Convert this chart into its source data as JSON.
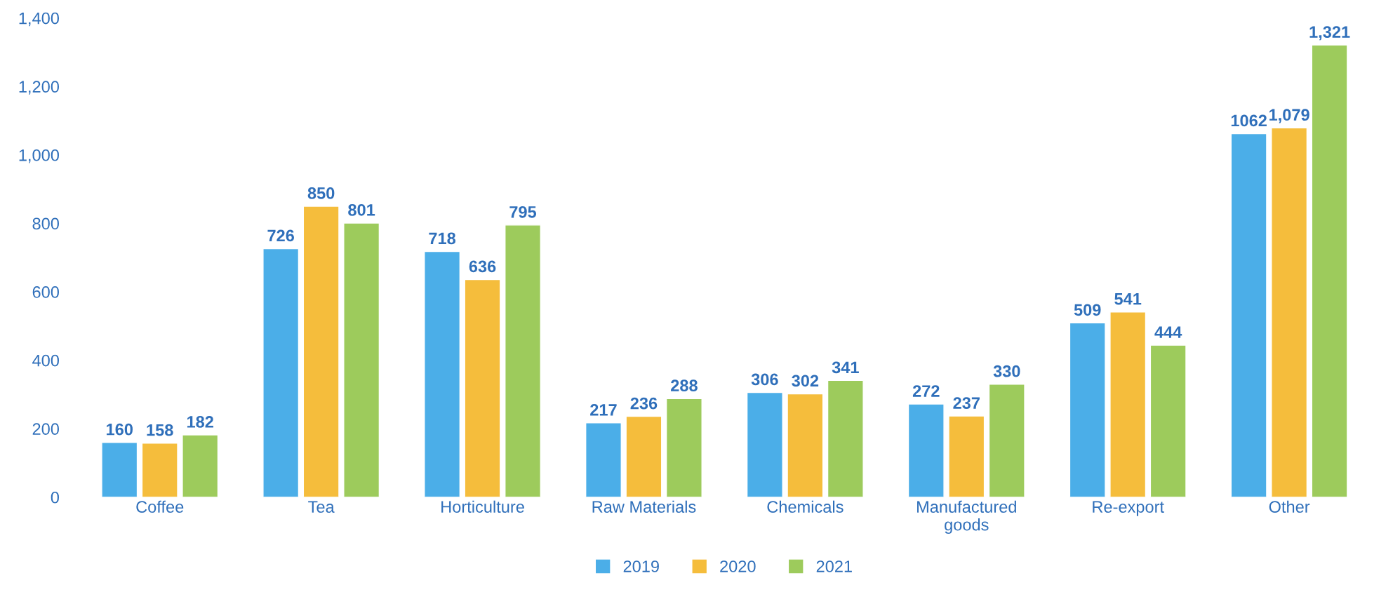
{
  "chart_data": {
    "type": "bar",
    "categories": [
      "Coffee",
      "Tea",
      "Horticulture",
      "Raw Materials",
      "Chemicals",
      "Manufactured\ngoods",
      "Re-export",
      "Other"
    ],
    "series": [
      {
        "name": "2019",
        "color": "#4baee8",
        "values": [
          160,
          726,
          718,
          217,
          306,
          272,
          509,
          1062
        ],
        "value_labels": [
          "160",
          "726",
          "718",
          "217",
          "306",
          "272",
          "509",
          "1062"
        ]
      },
      {
        "name": "2020",
        "color": "#f5bd3c",
        "values": [
          158,
          850,
          636,
          236,
          302,
          237,
          541,
          1079
        ],
        "value_labels": [
          "158",
          "850",
          "636",
          "236",
          "302",
          "237",
          "541",
          "1,079"
        ]
      },
      {
        "name": "2021",
        "color": "#9dcb5c",
        "values": [
          182,
          801,
          795,
          288,
          341,
          330,
          444,
          1321
        ],
        "value_labels": [
          "182",
          "801",
          "795",
          "288",
          "341",
          "330",
          "444",
          "1,321"
        ]
      }
    ],
    "ylim": [
      0,
      1400
    ],
    "yticks": [
      0,
      200,
      400,
      600,
      800,
      {
        "value": 1000,
        "label": "1,000"
      },
      {
        "value": 1200,
        "label": "1,200"
      },
      {
        "value": 1400,
        "label": "1,400"
      }
    ],
    "grid": false,
    "legend": "bottom"
  }
}
